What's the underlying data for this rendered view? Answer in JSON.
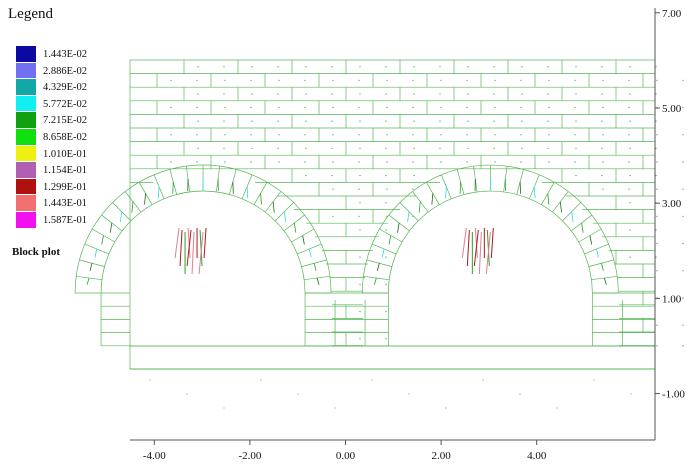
{
  "legend": {
    "title": "Legend",
    "items": [
      {
        "label": "1.443E-02",
        "color": "#0a0aa0"
      },
      {
        "label": "2.886E-02",
        "color": "#7070f0"
      },
      {
        "label": "4.329E-02",
        "color": "#12a8a8"
      },
      {
        "label": "5.772E-02",
        "color": "#10f0f0"
      },
      {
        "label": "7.215E-02",
        "color": "#10a010"
      },
      {
        "label": "8.658E-02",
        "color": "#10e010"
      },
      {
        "label": "1.010E-01",
        "color": "#f0f010"
      },
      {
        "label": "1.154E-01",
        "color": "#b060b0"
      },
      {
        "label": "1.299E-01",
        "color": "#b01010"
      },
      {
        "label": "1.443E-01",
        "color": "#f07070"
      },
      {
        "label": "1.587E-01",
        "color": "#f010f0"
      }
    ],
    "plot_label": "Block plot"
  },
  "axes": {
    "x_ticks": [
      {
        "value": -4.0,
        "label": "-4.00"
      },
      {
        "value": -2.0,
        "label": "-2.00"
      },
      {
        "value": 0.0,
        "label": "0.00"
      },
      {
        "value": 2.0,
        "label": "2.00"
      },
      {
        "value": 4.0,
        "label": "4.00"
      }
    ],
    "y_ticks": [
      {
        "value": 7.0,
        "label": "7.00"
      },
      {
        "value": 5.0,
        "label": "5.00"
      },
      {
        "value": 3.0,
        "label": "3.00"
      },
      {
        "value": 1.0,
        "label": "1.00"
      },
      {
        "value": -1.0,
        "label": "-1.00"
      }
    ],
    "x_range": [
      -5.5,
      5.5
    ],
    "y_range": [
      -2.0,
      7.2
    ]
  },
  "colors": {
    "block_edge": "#56b556",
    "axis": "#555555",
    "vector_green": "#2aa02a",
    "vector_cyan": "#30d8e8",
    "vector_pink": "#e08090",
    "vector_red": "#b01818",
    "vector_dark": "#1a6a1a"
  }
}
